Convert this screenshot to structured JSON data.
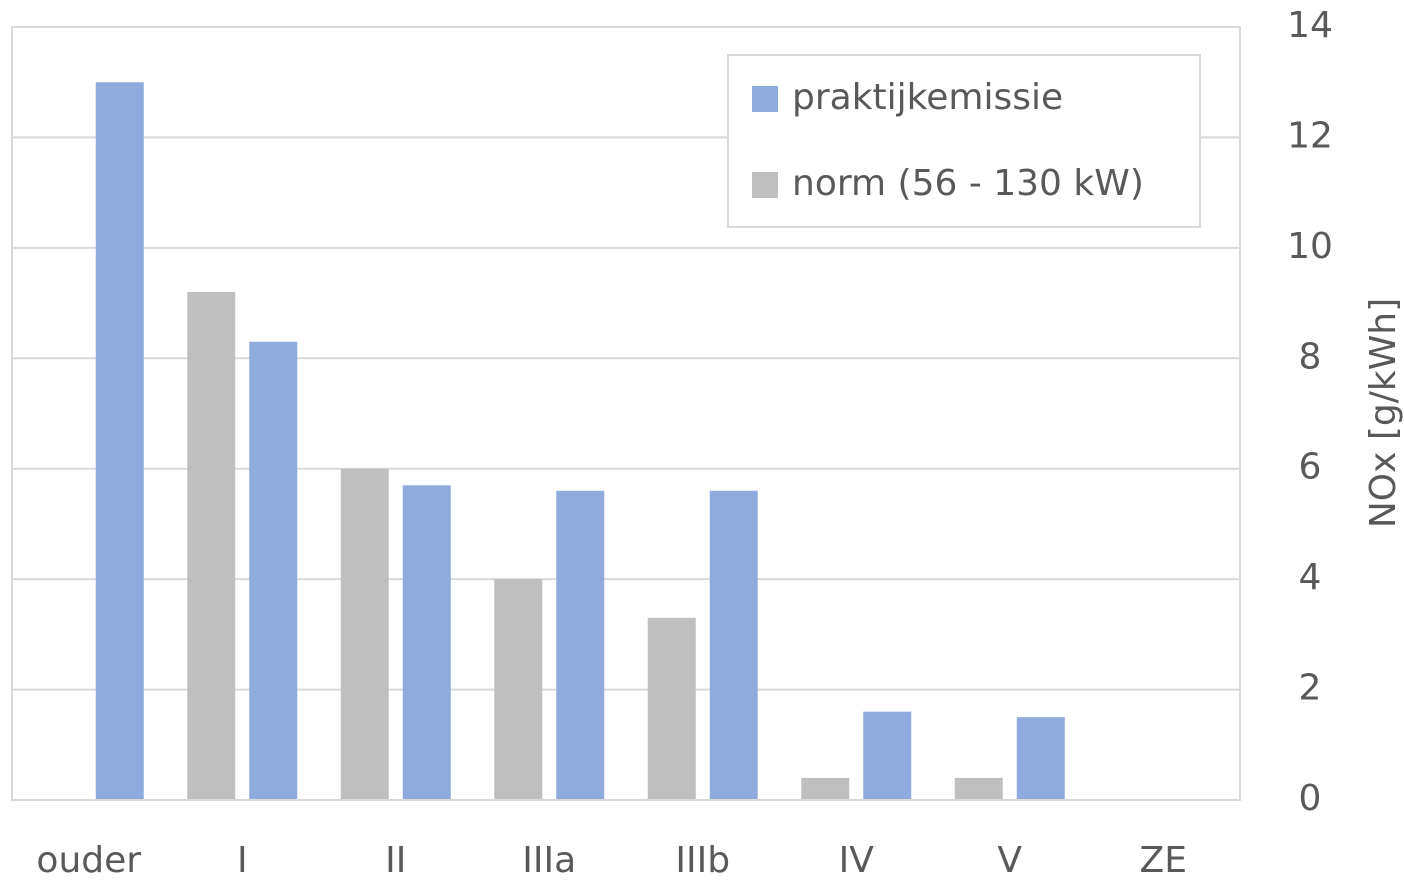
{
  "chart_data": {
    "type": "bar",
    "categories": [
      "ouder",
      "I",
      "II",
      "IIIa",
      "IIIb",
      "IV",
      "V",
      "ZE"
    ],
    "series": [
      {
        "name": "praktijkemissie",
        "color": "#8faadc",
        "values": [
          13,
          8.3,
          5.7,
          5.6,
          5.6,
          1.6,
          1.5,
          null
        ]
      },
      {
        "name": "norm (56 - 130 kW)",
        "color": "#bfbfbf",
        "values": [
          null,
          9.2,
          6,
          4,
          3.3,
          0.4,
          0.4,
          null
        ]
      }
    ],
    "y_label": "NOx [g/kWh]",
    "ylim": [
      0,
      14
    ],
    "yticks": [
      0,
      2,
      4,
      6,
      8,
      10,
      12,
      14
    ],
    "grid": true,
    "legend": "upper right"
  }
}
